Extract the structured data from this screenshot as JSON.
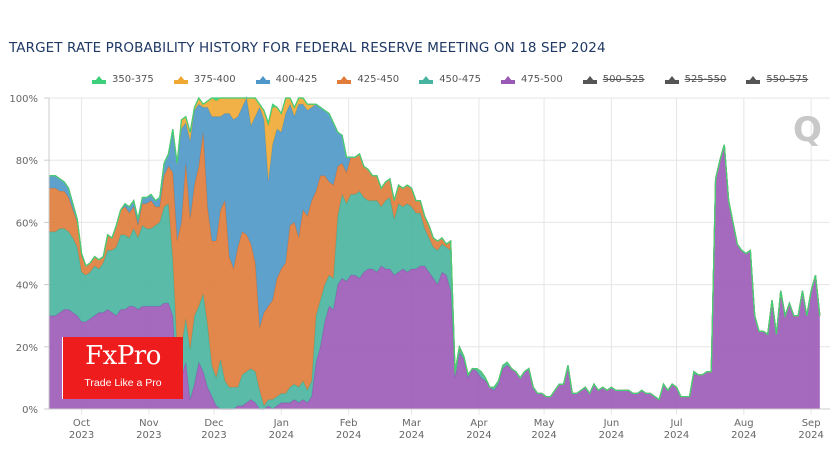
{
  "chart_data": {
    "type": "area",
    "stacked": true,
    "title": "TARGET RATE PROBABILITY HISTORY FOR FEDERAL RESERVE MEETING ON 18 SEP 2024",
    "xlabel": "",
    "ylabel": "",
    "ylim": [
      0,
      100
    ],
    "y_ticks": [
      "0%",
      "20%",
      "40%",
      "60%",
      "80%",
      "100%"
    ],
    "x_ticks": [
      {
        "month": "Oct",
        "year": "2023",
        "day": 15
      },
      {
        "month": "Nov",
        "year": "2023",
        "day": 46
      },
      {
        "month": "Dec",
        "year": "2023",
        "day": 76
      },
      {
        "month": "Jan",
        "year": "2024",
        "day": 107
      },
      {
        "month": "Feb",
        "year": "2024",
        "day": 138
      },
      {
        "month": "Mar",
        "year": "2024",
        "day": 167
      },
      {
        "month": "Apr",
        "year": "2024",
        "day": 198
      },
      {
        "month": "May",
        "year": "2024",
        "day": 228
      },
      {
        "month": "Jun",
        "year": "2024",
        "day": 259
      },
      {
        "month": "Jul",
        "year": "2024",
        "day": 289
      },
      {
        "month": "Aug",
        "year": "2024",
        "day": 320
      },
      {
        "month": "Sep",
        "year": "2024",
        "day": 351
      }
    ],
    "x_range_days": [
      0,
      356
    ],
    "x_note": "x values are days since 2023-09-16 (approx.)",
    "grid": true,
    "legend_position": "top",
    "x": [
      0,
      3,
      5,
      7,
      9,
      11,
      13,
      15,
      17,
      19,
      21,
      23,
      25,
      27,
      29,
      31,
      33,
      35,
      37,
      39,
      41,
      43,
      45,
      47,
      49,
      51,
      53,
      55,
      57,
      59,
      61,
      63,
      65,
      67,
      69,
      71,
      73,
      75,
      77,
      79,
      81,
      83,
      85,
      87,
      89,
      91,
      93,
      95,
      97,
      99,
      101,
      103,
      105,
      107,
      109,
      111,
      113,
      115,
      117,
      119,
      121,
      123,
      125,
      127,
      129,
      131,
      133,
      135,
      137,
      139,
      141,
      143,
      145,
      147,
      149,
      151,
      153,
      155,
      157,
      159,
      161,
      163,
      165,
      167,
      169,
      171,
      173,
      175,
      177,
      179,
      181,
      183,
      185,
      187,
      189,
      191,
      193,
      195,
      197,
      199,
      201,
      203,
      205,
      207,
      209,
      211,
      213,
      215,
      217,
      219,
      221,
      223,
      225,
      227,
      229,
      231,
      233,
      235,
      237,
      239,
      241,
      243,
      245,
      247,
      249,
      251,
      253,
      255,
      257,
      259,
      261,
      263,
      265,
      267,
      269,
      271,
      273,
      275,
      277,
      279,
      281,
      283,
      285,
      287,
      289,
      291,
      293,
      295,
      297,
      299,
      301,
      303,
      305,
      307,
      309,
      311,
      313,
      315,
      317,
      319,
      321,
      323,
      325,
      327,
      329,
      331,
      333,
      335,
      337,
      339,
      341,
      343,
      345,
      347,
      349,
      351,
      353,
      355
    ],
    "series": [
      {
        "name": "475-500",
        "color": "#9b59b6",
        "visible": true,
        "values": [
          30,
          30,
          31,
          32,
          32,
          31,
          30,
          28,
          28,
          29,
          30,
          31,
          31,
          32,
          31,
          30,
          32,
          32,
          33,
          33,
          32,
          33,
          33,
          33,
          33,
          33,
          34,
          34,
          30,
          6,
          10,
          15,
          3,
          8,
          15,
          12,
          7,
          4,
          1,
          0,
          0,
          0,
          0,
          1,
          1,
          2,
          3,
          2,
          0,
          0,
          1,
          0,
          1,
          2,
          2,
          2,
          3,
          2,
          3,
          2,
          4,
          15,
          20,
          28,
          33,
          32,
          40,
          42,
          41,
          43,
          43,
          42,
          44,
          45,
          45,
          44,
          46,
          45,
          45,
          43,
          44,
          45,
          44,
          45,
          45,
          46,
          46,
          44,
          42,
          40,
          44,
          43,
          38,
          10,
          18,
          16,
          10,
          13,
          12,
          10,
          9,
          7,
          6,
          8,
          13,
          14,
          13,
          12,
          10,
          12,
          13,
          7,
          5,
          5,
          4,
          4,
          6,
          8,
          8,
          14,
          5,
          5,
          6,
          7,
          5,
          8,
          6,
          7,
          6,
          7,
          6,
          6,
          6,
          6,
          5,
          5,
          6,
          5,
          5,
          4,
          3,
          8,
          6,
          8,
          7,
          4,
          4,
          4,
          11,
          11,
          11,
          12,
          12,
          74,
          80,
          85,
          67,
          60,
          53,
          51,
          50,
          51,
          30,
          25,
          25,
          24,
          35,
          24,
          38,
          30,
          34,
          30,
          30,
          38,
          30,
          38,
          43,
          30
        ]
      },
      {
        "name": "450-475",
        "color": "#48b4a0",
        "visible": true,
        "values": [
          27,
          27,
          27,
          26,
          25,
          24,
          22,
          16,
          15,
          15,
          16,
          14,
          16,
          19,
          20,
          22,
          24,
          24,
          22,
          25,
          23,
          26,
          25,
          25,
          26,
          27,
          31,
          32,
          18,
          13,
          10,
          14,
          16,
          22,
          18,
          25,
          20,
          10,
          9,
          16,
          9,
          7,
          7,
          6,
          10,
          10,
          10,
          10,
          6,
          1,
          2,
          3,
          3,
          3,
          3,
          5,
          5,
          5,
          6,
          4,
          5,
          15,
          15,
          12,
          10,
          10,
          22,
          27,
          25,
          26,
          26,
          28,
          24,
          22,
          22,
          23,
          19,
          22,
          23,
          18,
          22,
          20,
          22,
          20,
          18,
          17,
          12,
          11,
          10,
          11,
          9,
          9,
          13,
          1,
          1,
          1,
          1,
          0,
          1,
          2,
          1,
          0,
          1,
          1,
          1,
          1,
          0,
          0,
          0,
          0,
          0,
          0,
          0,
          0,
          0,
          0,
          0,
          0,
          0,
          0,
          0,
          0,
          0,
          0,
          0,
          0,
          0,
          0,
          0,
          0,
          0,
          0,
          0,
          0,
          0,
          0,
          0,
          0,
          0,
          0,
          0,
          0,
          0,
          0,
          0,
          0,
          0,
          0,
          1,
          0,
          0,
          0,
          0,
          0,
          0,
          0,
          0,
          0,
          0,
          0,
          0,
          0,
          0,
          0,
          0,
          0,
          0,
          0,
          0,
          0,
          0,
          0,
          0,
          0,
          0,
          0,
          0,
          0
        ]
      },
      {
        "name": "425-450",
        "color": "#e07b39",
        "visible": true,
        "values": [
          14,
          14,
          12,
          12,
          11,
          9,
          8,
          5,
          3,
          3,
          3,
          3,
          2,
          5,
          4,
          7,
          8,
          9,
          8,
          7,
          4,
          7,
          8,
          9,
          6,
          5,
          10,
          12,
          28,
          35,
          40,
          50,
          42,
          42,
          45,
          52,
          38,
          40,
          44,
          48,
          58,
          42,
          38,
          45,
          46,
          44,
          40,
          35,
          20,
          30,
          30,
          32,
          38,
          40,
          42,
          52,
          52,
          48,
          55,
          56,
          58,
          40,
          40,
          35,
          30,
          30,
          16,
          10,
          10,
          12,
          12,
          12,
          10,
          10,
          8,
          8,
          6,
          6,
          6,
          6,
          6,
          6,
          6,
          6,
          4,
          4,
          4,
          4,
          3,
          3,
          2,
          1,
          3,
          1,
          1,
          0,
          0,
          0,
          0,
          0,
          0,
          0,
          0,
          0,
          0,
          0,
          0,
          0,
          0,
          0,
          0,
          0,
          0,
          0,
          0,
          0,
          0,
          0,
          0,
          0,
          0,
          0,
          0,
          0,
          0,
          0,
          0,
          0,
          0,
          0,
          0,
          0,
          0,
          0,
          0,
          0,
          0,
          0,
          0,
          0,
          0,
          0,
          0,
          0,
          0,
          0,
          0,
          0,
          0,
          0,
          0,
          0,
          0,
          0,
          0,
          0,
          0,
          0,
          0,
          0,
          0,
          0,
          0,
          0,
          0,
          0,
          0,
          0,
          0,
          0,
          0,
          0,
          0,
          0,
          0,
          0,
          0,
          0
        ]
      },
      {
        "name": "400-425",
        "color": "#4e97c8",
        "visible": true,
        "values": [
          4,
          4,
          4,
          3,
          3,
          2,
          1,
          1,
          0,
          0,
          0,
          0,
          0,
          0,
          0,
          0,
          0,
          1,
          2,
          2,
          2,
          2,
          2,
          2,
          2,
          3,
          4,
          4,
          13,
          25,
          30,
          13,
          25,
          24,
          20,
          8,
          32,
          40,
          40,
          30,
          28,
          46,
          48,
          42,
          40,
          44,
          38,
          47,
          71,
          62,
          40,
          50,
          48,
          44,
          48,
          39,
          34,
          43,
          34,
          34,
          30,
          28,
          22,
          21,
          22,
          20,
          11,
          9,
          5,
          0,
          0,
          0,
          0,
          0,
          0,
          0,
          0,
          0,
          0,
          0,
          0,
          0,
          0,
          0,
          0,
          0,
          0,
          0,
          0,
          0,
          0,
          0,
          0,
          0,
          0,
          0,
          0,
          0,
          0,
          0,
          0,
          0,
          0,
          0,
          0,
          0,
          0,
          0,
          0,
          0,
          0,
          0,
          0,
          0,
          0,
          0,
          0,
          0,
          0,
          0,
          0,
          0,
          0,
          0,
          0,
          0,
          0,
          0,
          0,
          0,
          0,
          0,
          0,
          0,
          0,
          0,
          0,
          0,
          0,
          0,
          0,
          0,
          0,
          0,
          0,
          0,
          0,
          0,
          0,
          0,
          0,
          0,
          0,
          0,
          0,
          0,
          0,
          0,
          0,
          0,
          0,
          0,
          0,
          0,
          0,
          0,
          0,
          0,
          0,
          0,
          0,
          0,
          0,
          0,
          0,
          0,
          0,
          0
        ]
      },
      {
        "name": "375-400",
        "color": "#f0a832",
        "visible": true,
        "values": [
          0,
          0,
          0,
          0,
          0,
          0,
          0,
          0,
          0,
          0,
          0,
          0,
          0,
          0,
          0,
          0,
          0,
          0,
          0,
          0,
          0,
          0,
          0,
          0,
          0,
          0,
          0,
          0,
          1,
          0,
          3,
          2,
          3,
          1,
          2,
          1,
          2,
          6,
          5,
          6,
          5,
          5,
          7,
          6,
          4,
          2,
          10,
          6,
          1,
          3,
          18,
          12,
          7,
          6,
          5,
          3,
          3,
          2,
          2,
          2,
          1,
          0,
          0,
          0,
          0,
          0,
          0,
          0,
          0,
          0,
          0,
          0,
          0,
          0,
          0,
          0,
          0,
          0,
          0,
          0,
          0,
          0,
          0,
          0,
          0,
          0,
          0,
          0,
          0,
          0,
          0,
          0,
          0,
          0,
          0,
          0,
          0,
          0,
          0,
          0,
          0,
          0,
          0,
          0,
          0,
          0,
          0,
          0,
          0,
          0,
          0,
          0,
          0,
          0,
          0,
          0,
          0,
          0,
          0,
          0,
          0,
          0,
          0,
          0,
          0,
          0,
          0,
          0,
          0,
          0,
          0,
          0,
          0,
          0,
          0,
          0,
          0,
          0,
          0,
          0,
          0,
          0,
          0,
          0,
          0,
          0,
          0,
          0,
          0,
          0,
          0,
          0,
          0,
          0,
          0,
          0,
          0,
          0,
          0,
          0,
          0,
          0,
          0,
          0,
          0,
          0,
          0,
          0,
          0,
          0,
          0,
          0,
          0,
          0,
          0,
          0,
          0,
          0
        ]
      },
      {
        "name": "350-375",
        "color": "#3ecf7a",
        "visible": true,
        "values": [
          0,
          0,
          0,
          0,
          0,
          0,
          0,
          0,
          0,
          0,
          0,
          0,
          0,
          0,
          0,
          0,
          0,
          0,
          0,
          0,
          0,
          0,
          0,
          0,
          0,
          0,
          0,
          0,
          0,
          0,
          0,
          0,
          0,
          0,
          0,
          0,
          0,
          0,
          1,
          1,
          1,
          0,
          0,
          0,
          0,
          1,
          4,
          3,
          0,
          0,
          1,
          1,
          0,
          0,
          0,
          0,
          0,
          0,
          0,
          0,
          0,
          0,
          0,
          0,
          0,
          0,
          0,
          0,
          0,
          0,
          0,
          0,
          0,
          0,
          0,
          0,
          0,
          0,
          0,
          0,
          0,
          0,
          0,
          0,
          0,
          0,
          0,
          0,
          0,
          0,
          0,
          0,
          0,
          0,
          0,
          0,
          0,
          0,
          0,
          0,
          0,
          0,
          0,
          0,
          0,
          0,
          0,
          0,
          0,
          0,
          0,
          0,
          0,
          0,
          0,
          0,
          0,
          0,
          0,
          0,
          0,
          0,
          0,
          0,
          0,
          0,
          0,
          0,
          0,
          0,
          0,
          0,
          0,
          0,
          0,
          0,
          0,
          0,
          0,
          0,
          0,
          0,
          0,
          0,
          0,
          0,
          0,
          0,
          0,
          0,
          0,
          0,
          0,
          0,
          0,
          0,
          0,
          0,
          0,
          0,
          0,
          0,
          0,
          0,
          0,
          0,
          0,
          0,
          0,
          0,
          0,
          0,
          0,
          0,
          0,
          0,
          0,
          0
        ]
      },
      {
        "name": "500-525",
        "color": "#555555",
        "visible": false,
        "values": []
      },
      {
        "name": "525-550",
        "color": "#555555",
        "visible": false,
        "values": []
      },
      {
        "name": "550-575",
        "color": "#555555",
        "visible": false,
        "values": []
      }
    ]
  },
  "legend": [
    {
      "label": "350-375",
      "color": "#3ecf7a",
      "visible": true
    },
    {
      "label": "375-400",
      "color": "#f0a832",
      "visible": true
    },
    {
      "label": "400-425",
      "color": "#4e97c8",
      "visible": true
    },
    {
      "label": "425-450",
      "color": "#e07b39",
      "visible": true
    },
    {
      "label": "450-475",
      "color": "#48b4a0",
      "visible": true
    },
    {
      "label": "475-500",
      "color": "#9b59b6",
      "visible": true
    },
    {
      "label": "500-525",
      "color": "#555555",
      "visible": false
    },
    {
      "label": "525-550",
      "color": "#555555",
      "visible": false
    },
    {
      "label": "550-575",
      "color": "#555555",
      "visible": false
    }
  ],
  "watermark": {
    "brand": "FxPro",
    "tagline": "Trade Like a Pro",
    "brand_color": "#ee1c1c",
    "corner_logo": "Q"
  }
}
